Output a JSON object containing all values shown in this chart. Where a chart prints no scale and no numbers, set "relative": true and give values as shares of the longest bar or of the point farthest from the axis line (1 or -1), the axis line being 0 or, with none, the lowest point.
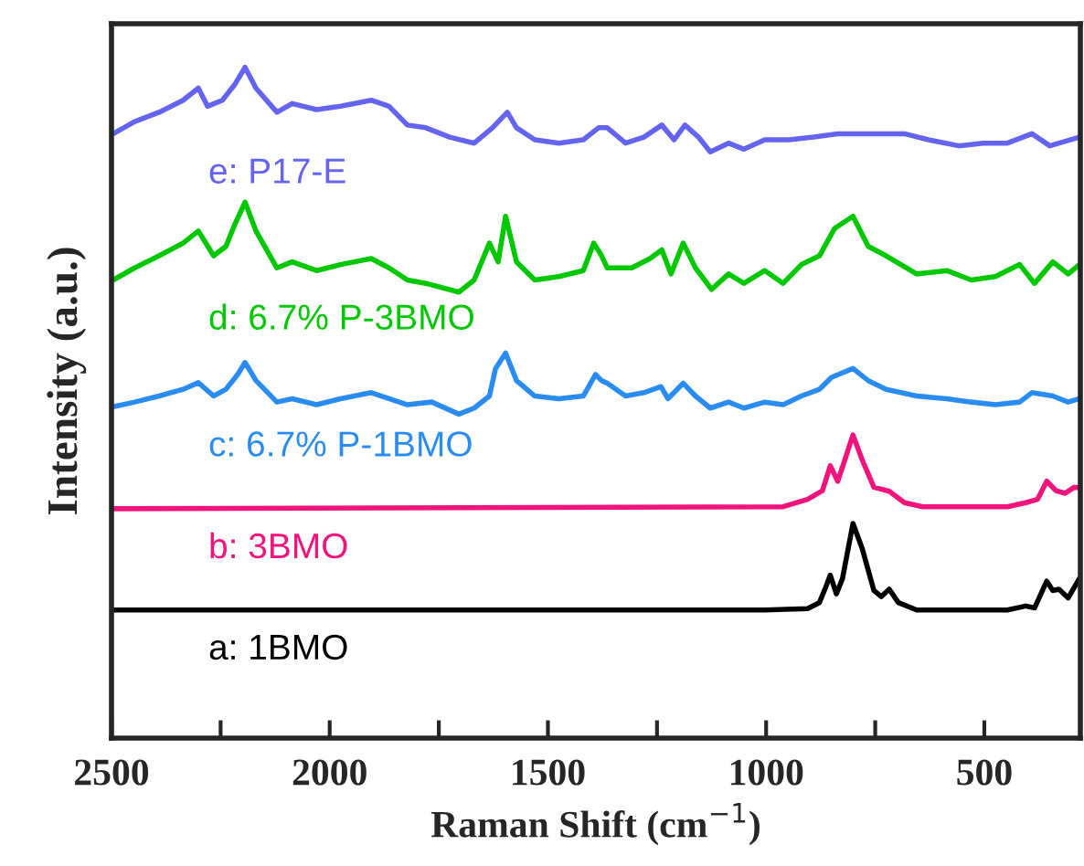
{
  "chart_data": {
    "type": "line",
    "relative": true,
    "xlabel": "Raman Shift (cm$^{−1}$)",
    "ylabel": "Intensity (a.u.)",
    "xlim": [
      2500,
      280
    ],
    "xticks": [
      2500,
      {
        "value": 2250,
        "label": null
      },
      2000,
      {
        "value": 1750,
        "label": null
      },
      1500,
      {
        "value": 1250,
        "label": null
      },
      1000,
      {
        "value": 750,
        "label": null
      },
      500
    ],
    "grid": false,
    "legend": false,
    "marker": "none",
    "line_style": "solid",
    "series": [
      {
        "name": "a: 1BMO",
        "color": "#000000",
        "x": [
          2500,
          1003,
          905,
          878,
          864,
          853,
          839,
          825,
          801,
          780,
          753,
          736,
          718,
          697,
          655,
          447,
          405,
          385,
          357,
          343,
          329,
          308,
          282
        ],
        "values": [
          0.191,
          0.191,
          0.193,
          0.202,
          0.224,
          0.243,
          0.215,
          0.238,
          0.32,
          0.283,
          0.22,
          0.211,
          0.222,
          0.202,
          0.191,
          0.191,
          0.197,
          0.194,
          0.234,
          0.22,
          0.222,
          0.209,
          0.238
        ]
      },
      {
        "name": "b: 3BMO",
        "color": "#f0147c",
        "x": [
          2500,
          961,
          905,
          871,
          853,
          836,
          822,
          801,
          780,
          753,
          718,
          683,
          641,
          447,
          405,
          378,
          357,
          336,
          315,
          294,
          282
        ],
        "values": [
          0.342,
          0.345,
          0.356,
          0.369,
          0.406,
          0.383,
          0.41,
          0.452,
          0.415,
          0.374,
          0.368,
          0.351,
          0.345,
          0.345,
          0.351,
          0.356,
          0.383,
          0.369,
          0.365,
          0.374,
          0.373
        ]
      },
      {
        "name": "c: 6.7% P-1BMO",
        "color": "#2a8cf0",
        "x": [
          2496,
          2447,
          2391,
          2336,
          2301,
          2266,
          2238,
          2211,
          2194,
          2169,
          2121,
          2086,
          2030,
          1975,
          1905,
          1864,
          1822,
          1766,
          1704,
          1669,
          1634,
          1620,
          1597,
          1572,
          1530,
          1475,
          1419,
          1391,
          1377,
          1364,
          1322,
          1280,
          1241,
          1225,
          1190,
          1162,
          1128,
          1086,
          1051,
          1003,
          961,
          919,
          878,
          850,
          801,
          766,
          725,
          655,
          586,
          530,
          475,
          419,
          391,
          343,
          308,
          282
        ],
        "values": [
          0.494,
          0.501,
          0.51,
          0.52,
          0.53,
          0.51,
          0.52,
          0.542,
          0.56,
          0.533,
          0.501,
          0.506,
          0.497,
          0.506,
          0.515,
          0.506,
          0.497,
          0.501,
          0.483,
          0.492,
          0.51,
          0.551,
          0.574,
          0.533,
          0.51,
          0.506,
          0.51,
          0.542,
          0.533,
          0.529,
          0.51,
          0.515,
          0.524,
          0.506,
          0.529,
          0.51,
          0.492,
          0.501,
          0.492,
          0.501,
          0.497,
          0.51,
          0.52,
          0.538,
          0.551,
          0.533,
          0.52,
          0.51,
          0.506,
          0.501,
          0.497,
          0.501,
          0.515,
          0.51,
          0.501,
          0.506
        ]
      },
      {
        "name": "d: 6.7% P-3BMO",
        "color": "#00c800",
        "x": [
          2496,
          2447,
          2391,
          2336,
          2301,
          2266,
          2238,
          2218,
          2194,
          2169,
          2121,
          2086,
          2030,
          1975,
          1905,
          1864,
          1822,
          1780,
          1704,
          1669,
          1634,
          1614,
          1597,
          1572,
          1530,
          1475,
          1419,
          1395,
          1377,
          1364,
          1308,
          1266,
          1239,
          1218,
          1190,
          1162,
          1125,
          1086,
          1051,
          1003,
          961,
          919,
          878,
          843,
          801,
          766,
          725,
          655,
          586,
          530,
          475,
          419,
          385,
          343,
          308,
          282
        ],
        "values": [
          0.683,
          0.701,
          0.719,
          0.738,
          0.756,
          0.719,
          0.733,
          0.765,
          0.799,
          0.756,
          0.701,
          0.71,
          0.697,
          0.706,
          0.715,
          0.701,
          0.683,
          0.678,
          0.665,
          0.683,
          0.738,
          0.71,
          0.778,
          0.71,
          0.683,
          0.688,
          0.697,
          0.738,
          0.719,
          0.701,
          0.701,
          0.715,
          0.728,
          0.692,
          0.738,
          0.701,
          0.669,
          0.692,
          0.678,
          0.697,
          0.678,
          0.706,
          0.719,
          0.76,
          0.778,
          0.733,
          0.719,
          0.692,
          0.697,
          0.683,
          0.688,
          0.706,
          0.678,
          0.71,
          0.692,
          0.706
        ]
      },
      {
        "name": "e: P17-E",
        "color": "#6464f0",
        "x": [
          2496,
          2447,
          2391,
          2336,
          2301,
          2280,
          2246,
          2218,
          2194,
          2169,
          2121,
          2086,
          2030,
          1975,
          1905,
          1864,
          1822,
          1780,
          1725,
          1669,
          1627,
          1593,
          1572,
          1530,
          1475,
          1419,
          1384,
          1364,
          1322,
          1280,
          1239,
          1211,
          1186,
          1155,
          1128,
          1086,
          1051,
          1003,
          947,
          891,
          836,
          766,
          683,
          628,
          558,
          503,
          447,
          391,
          350,
          282
        ],
        "values": [
          0.901,
          0.919,
          0.933,
          0.951,
          0.969,
          0.942,
          0.951,
          0.974,
          1,
          0.969,
          0.933,
          0.946,
          0.937,
          0.942,
          0.951,
          0.942,
          0.914,
          0.91,
          0.896,
          0.887,
          0.91,
          0.933,
          0.91,
          0.892,
          0.887,
          0.892,
          0.91,
          0.91,
          0.887,
          0.896,
          0.914,
          0.892,
          0.914,
          0.896,
          0.874,
          0.887,
          0.878,
          0.892,
          0.892,
          0.896,
          0.901,
          0.901,
          0.901,
          0.892,
          0.883,
          0.887,
          0.887,
          0.901,
          0.883,
          0.896
        ]
      }
    ]
  }
}
